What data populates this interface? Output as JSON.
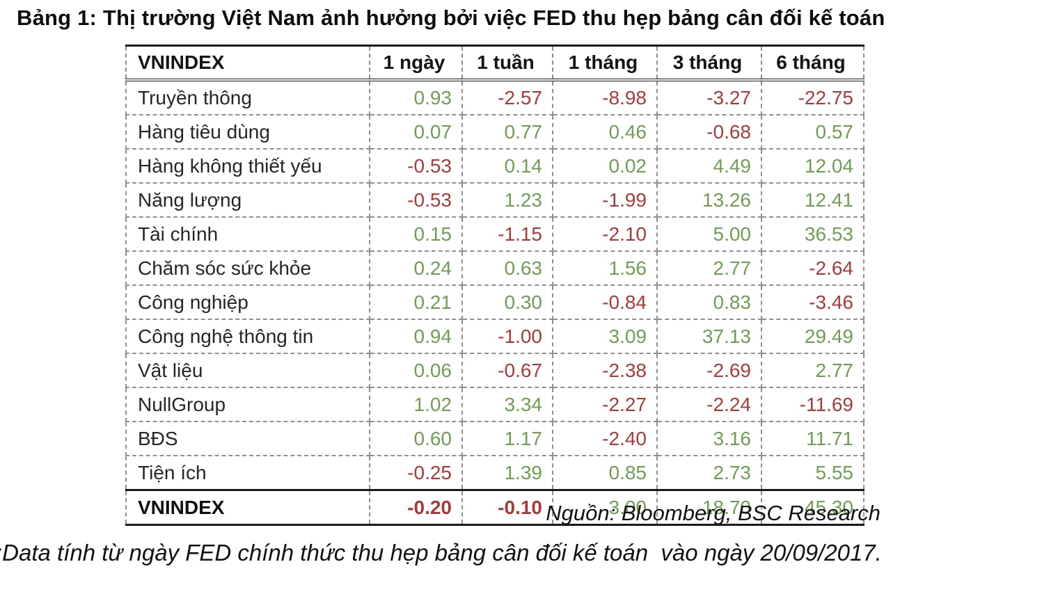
{
  "title": "Bảng 1: Thị trường Việt Nam ảnh hưởng bởi việc FED thu hẹp bảng cân đối kế toán",
  "table": {
    "headers": [
      "VNINDEX",
      "1 ngày",
      "1 tuần",
      "1 tháng",
      "3 tháng",
      "6 tháng"
    ],
    "rows": [
      {
        "label": "Truyền thông",
        "values": [
          "0.93",
          "-2.57",
          "-8.98",
          "-3.27",
          "-22.75"
        ],
        "total": false
      },
      {
        "label": "Hàng tiêu dùng",
        "values": [
          "0.07",
          "0.77",
          "0.46",
          "-0.68",
          "0.57"
        ],
        "total": false
      },
      {
        "label": "Hàng không thiết yếu",
        "values": [
          "-0.53",
          "0.14",
          "0.02",
          "4.49",
          "12.04"
        ],
        "total": false
      },
      {
        "label": "Năng lượng",
        "values": [
          "-0.53",
          "1.23",
          "-1.99",
          "13.26",
          "12.41"
        ],
        "total": false
      },
      {
        "label": "Tài chính",
        "values": [
          "0.15",
          "-1.15",
          "-2.10",
          "5.00",
          "36.53"
        ],
        "total": false
      },
      {
        "label": "Chăm sóc sức khỏe",
        "values": [
          "0.24",
          "0.63",
          "1.56",
          "2.77",
          "-2.64"
        ],
        "total": false
      },
      {
        "label": "Công nghiệp",
        "values": [
          "0.21",
          "0.30",
          "-0.84",
          "0.83",
          "-3.46"
        ],
        "total": false
      },
      {
        "label": "Công nghệ thông tin",
        "values": [
          "0.94",
          "-1.00",
          "3.09",
          "37.13",
          "29.49"
        ],
        "total": false
      },
      {
        "label": "Vật liệu",
        "values": [
          "0.06",
          "-0.67",
          "-2.38",
          "-2.69",
          "2.77"
        ],
        "total": false
      },
      {
        "label": "NullGroup",
        "values": [
          "1.02",
          "3.34",
          "-2.27",
          "-2.24",
          "-11.69"
        ],
        "total": false
      },
      {
        "label": "BĐS",
        "values": [
          "0.60",
          "1.17",
          "-2.40",
          "3.16",
          "11.71"
        ],
        "total": false
      },
      {
        "label": "Tiện ích",
        "values": [
          "-0.25",
          "1.39",
          "0.85",
          "2.73",
          "5.55"
        ],
        "total": false
      },
      {
        "label": "VNINDEX",
        "values": [
          "-0.20",
          "-0.10",
          "3.00",
          "18.70",
          "45.30"
        ],
        "total": true
      }
    ]
  },
  "source_note": "Nguồn: Bloomberg, BSC Research",
  "footnote": ":Data tính từ ngày FED chính thức thu hẹp bảng cân đối kế toán  vào ngày 20/09/2017.",
  "colors": {
    "positive": "#6f9e52",
    "negative": "#a93a3a",
    "border_dark": "#1a1a1a",
    "border_dashed": "#8f8f8f"
  }
}
